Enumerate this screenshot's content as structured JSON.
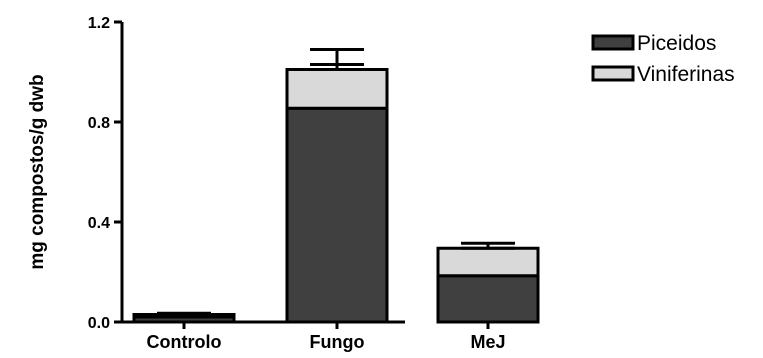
{
  "chart_data": {
    "type": "bar",
    "stacked": true,
    "title": "",
    "xlabel": "",
    "ylabel": "mg compostos/g dwb",
    "ylim": [
      0,
      1.2
    ],
    "yticks": [
      "0.0",
      "0.4",
      "0.8",
      "1.2"
    ],
    "categories": [
      "Controlo",
      "Fungo",
      "MeJ"
    ],
    "series": [
      {
        "name": "Piceidos",
        "values": [
          0.02,
          0.855,
          0.185
        ],
        "color": "#404040"
      },
      {
        "name": "Viniferinas",
        "values": [
          0.01,
          0.155,
          0.11
        ],
        "color": "#d9d9d9"
      }
    ],
    "error_bars": {
      "total_lower": [
        0.025,
        1.03,
        0.295
      ],
      "total_upper": [
        0.035,
        1.09,
        0.315
      ]
    },
    "legend": {
      "position": "top-right"
    },
    "grid": false
  }
}
